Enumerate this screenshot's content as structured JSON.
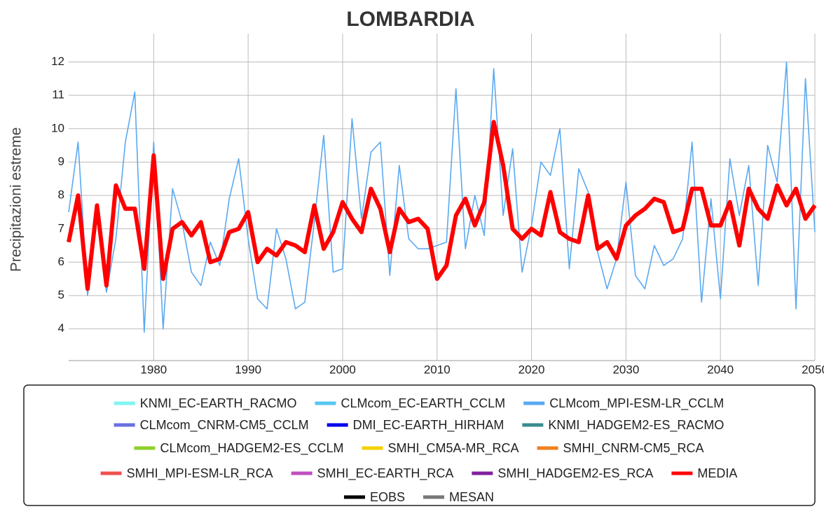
{
  "chart_data": {
    "type": "line",
    "title": "LOMBARDIA",
    "y_label": "Precipitazioni estreme",
    "x": [
      1971,
      1972,
      1973,
      1974,
      1975,
      1976,
      1977,
      1978,
      1979,
      1980,
      1981,
      1982,
      1983,
      1984,
      1985,
      1986,
      1987,
      1988,
      1989,
      1990,
      1991,
      1992,
      1993,
      1994,
      1995,
      1996,
      1997,
      1998,
      1999,
      2000,
      2001,
      2002,
      2003,
      2004,
      2005,
      2006,
      2007,
      2008,
      2009,
      2010,
      2011,
      2012,
      2013,
      2014,
      2015,
      2016,
      2017,
      2018,
      2019,
      2020,
      2021,
      2022,
      2023,
      2024,
      2025,
      2026,
      2027,
      2028,
      2029,
      2030,
      2031,
      2032,
      2033,
      2034,
      2035,
      2036,
      2037,
      2038,
      2039,
      2040,
      2041,
      2042,
      2043,
      2044,
      2045,
      2046,
      2047,
      2048,
      2049,
      2050
    ],
    "xlim": [
      1971,
      2050
    ],
    "xticks": [
      1980,
      1990,
      2000,
      2010,
      2020,
      2030,
      2040,
      2050
    ],
    "ylim": [
      3.05,
      12.85
    ],
    "yticks": [
      4,
      5,
      6,
      7,
      8,
      9,
      10,
      11,
      12
    ],
    "grid": true,
    "series": [
      {
        "name": "KNMI_EC-EARTH_RACMO",
        "color": "#80f4f4"
      },
      {
        "name": "CLMcom_EC-EARTH_CCLM",
        "color": "#55c6f0"
      },
      {
        "name": "CLMcom_MPI-ESM-LR_CCLM",
        "color": "#5aa9f0",
        "values": [
          7.5,
          9.6,
          5.0,
          7.3,
          5.1,
          6.7,
          9.6,
          11.1,
          3.9,
          9.6,
          4.0,
          8.2,
          7.2,
          5.7,
          5.3,
          6.6,
          5.9,
          7.9,
          9.1,
          6.7,
          4.9,
          4.6,
          7.0,
          6.1,
          4.6,
          4.8,
          7.2,
          9.8,
          5.7,
          5.8,
          10.3,
          7.3,
          9.3,
          9.6,
          5.6,
          8.9,
          6.7,
          6.4,
          6.4,
          6.5,
          6.6,
          11.2,
          6.4,
          8.0,
          6.8,
          11.8,
          7.4,
          9.4,
          5.7,
          7.1,
          9.0,
          8.6,
          10.0,
          5.8,
          8.8,
          8.1,
          6.3,
          5.2,
          6.1,
          8.4,
          5.6,
          5.2,
          6.5,
          5.9,
          6.1,
          6.7,
          9.6,
          4.8,
          7.9,
          4.9,
          9.1,
          7.4,
          8.9,
          5.3,
          9.5,
          8.4,
          12.0,
          4.6,
          11.5,
          6.9
        ]
      },
      {
        "name": "CLMcom_CNRM-CM5_CCLM",
        "color": "#6a70e0"
      },
      {
        "name": "DMI_EC-EARTH_HIRHAM",
        "color": "#0000ee"
      },
      {
        "name": "KNMI_HADGEM2-ES_RACMO",
        "color": "#3a8c8c"
      },
      {
        "name": "CLMcom_HADGEM2-ES_CCLM",
        "color": "#8ed02a"
      },
      {
        "name": "SMHI_CM5A-MR_RCA",
        "color": "#f5d000"
      },
      {
        "name": "SMHI_CNRM-CM5_RCA",
        "color": "#f08020"
      },
      {
        "name": "SMHI_MPI-ESM-LR_RCA",
        "color": "#f05050"
      },
      {
        "name": "SMHI_EC-EARTH_RCA",
        "color": "#c050c0"
      },
      {
        "name": "SMHI_HADGEM2-ES_RCA",
        "color": "#8020a0"
      },
      {
        "name": "MEDIA",
        "color": "#ff0000",
        "values": [
          6.6,
          8.0,
          5.2,
          7.7,
          5.3,
          8.3,
          7.6,
          7.6,
          5.8,
          9.2,
          5.5,
          7.0,
          7.2,
          6.8,
          7.2,
          6.0,
          6.1,
          6.9,
          7.0,
          7.5,
          6.0,
          6.4,
          6.2,
          6.6,
          6.5,
          6.3,
          7.7,
          6.4,
          6.9,
          7.8,
          7.3,
          6.9,
          8.2,
          7.6,
          6.3,
          7.6,
          7.2,
          7.3,
          7.0,
          5.5,
          5.9,
          7.4,
          7.9,
          7.1,
          7.8,
          10.2,
          8.9,
          7.0,
          6.7,
          7.0,
          6.8,
          8.1,
          6.9,
          6.7,
          6.6,
          8.0,
          6.4,
          6.6,
          6.1,
          7.1,
          7.4,
          7.6,
          7.9,
          7.8,
          6.9,
          7.0,
          8.2,
          8.2,
          7.1,
          7.1,
          7.8,
          6.5,
          8.2,
          7.6,
          7.3,
          8.3,
          7.7,
          8.2,
          7.3,
          7.7
        ]
      },
      {
        "name": "EOBS",
        "color": "#000000"
      },
      {
        "name": "MESAN",
        "color": "#777777"
      }
    ]
  }
}
